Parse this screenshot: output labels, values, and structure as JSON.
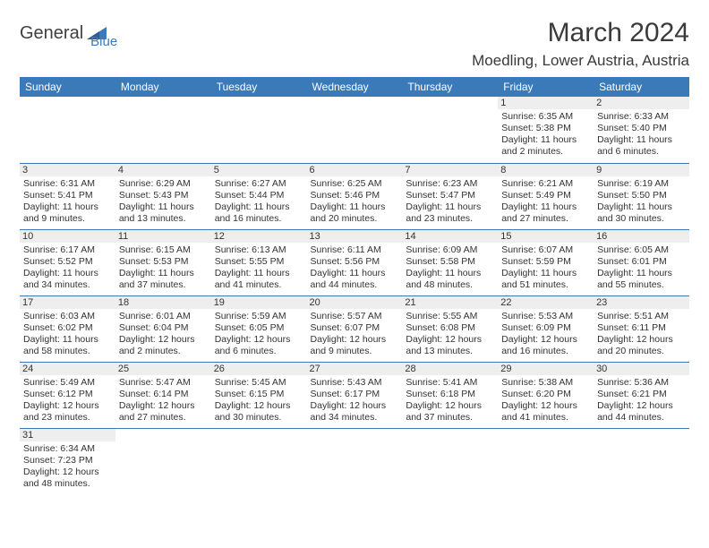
{
  "logo": {
    "part1": "General",
    "part2": "Blue"
  },
  "header": {
    "month": "March 2024",
    "location": "Moedling, Lower Austria, Austria"
  },
  "colors": {
    "header_bg": "#3b7ab8",
    "header_text": "#ffffff",
    "daynum_bg": "#eeeeee",
    "border": "#3b7ab8"
  },
  "weekdays": [
    "Sunday",
    "Monday",
    "Tuesday",
    "Wednesday",
    "Thursday",
    "Friday",
    "Saturday"
  ],
  "weeks": [
    [
      null,
      null,
      null,
      null,
      null,
      {
        "d": "1",
        "sr": "6:35 AM",
        "ss": "5:38 PM",
        "dl": "11 hours and 2 minutes."
      },
      {
        "d": "2",
        "sr": "6:33 AM",
        "ss": "5:40 PM",
        "dl": "11 hours and 6 minutes."
      }
    ],
    [
      {
        "d": "3",
        "sr": "6:31 AM",
        "ss": "5:41 PM",
        "dl": "11 hours and 9 minutes."
      },
      {
        "d": "4",
        "sr": "6:29 AM",
        "ss": "5:43 PM",
        "dl": "11 hours and 13 minutes."
      },
      {
        "d": "5",
        "sr": "6:27 AM",
        "ss": "5:44 PM",
        "dl": "11 hours and 16 minutes."
      },
      {
        "d": "6",
        "sr": "6:25 AM",
        "ss": "5:46 PM",
        "dl": "11 hours and 20 minutes."
      },
      {
        "d": "7",
        "sr": "6:23 AM",
        "ss": "5:47 PM",
        "dl": "11 hours and 23 minutes."
      },
      {
        "d": "8",
        "sr": "6:21 AM",
        "ss": "5:49 PM",
        "dl": "11 hours and 27 minutes."
      },
      {
        "d": "9",
        "sr": "6:19 AM",
        "ss": "5:50 PM",
        "dl": "11 hours and 30 minutes."
      }
    ],
    [
      {
        "d": "10",
        "sr": "6:17 AM",
        "ss": "5:52 PM",
        "dl": "11 hours and 34 minutes."
      },
      {
        "d": "11",
        "sr": "6:15 AM",
        "ss": "5:53 PM",
        "dl": "11 hours and 37 minutes."
      },
      {
        "d": "12",
        "sr": "6:13 AM",
        "ss": "5:55 PM",
        "dl": "11 hours and 41 minutes."
      },
      {
        "d": "13",
        "sr": "6:11 AM",
        "ss": "5:56 PM",
        "dl": "11 hours and 44 minutes."
      },
      {
        "d": "14",
        "sr": "6:09 AM",
        "ss": "5:58 PM",
        "dl": "11 hours and 48 minutes."
      },
      {
        "d": "15",
        "sr": "6:07 AM",
        "ss": "5:59 PM",
        "dl": "11 hours and 51 minutes."
      },
      {
        "d": "16",
        "sr": "6:05 AM",
        "ss": "6:01 PM",
        "dl": "11 hours and 55 minutes."
      }
    ],
    [
      {
        "d": "17",
        "sr": "6:03 AM",
        "ss": "6:02 PM",
        "dl": "11 hours and 58 minutes."
      },
      {
        "d": "18",
        "sr": "6:01 AM",
        "ss": "6:04 PM",
        "dl": "12 hours and 2 minutes."
      },
      {
        "d": "19",
        "sr": "5:59 AM",
        "ss": "6:05 PM",
        "dl": "12 hours and 6 minutes."
      },
      {
        "d": "20",
        "sr": "5:57 AM",
        "ss": "6:07 PM",
        "dl": "12 hours and 9 minutes."
      },
      {
        "d": "21",
        "sr": "5:55 AM",
        "ss": "6:08 PM",
        "dl": "12 hours and 13 minutes."
      },
      {
        "d": "22",
        "sr": "5:53 AM",
        "ss": "6:09 PM",
        "dl": "12 hours and 16 minutes."
      },
      {
        "d": "23",
        "sr": "5:51 AM",
        "ss": "6:11 PM",
        "dl": "12 hours and 20 minutes."
      }
    ],
    [
      {
        "d": "24",
        "sr": "5:49 AM",
        "ss": "6:12 PM",
        "dl": "12 hours and 23 minutes."
      },
      {
        "d": "25",
        "sr": "5:47 AM",
        "ss": "6:14 PM",
        "dl": "12 hours and 27 minutes."
      },
      {
        "d": "26",
        "sr": "5:45 AM",
        "ss": "6:15 PM",
        "dl": "12 hours and 30 minutes."
      },
      {
        "d": "27",
        "sr": "5:43 AM",
        "ss": "6:17 PM",
        "dl": "12 hours and 34 minutes."
      },
      {
        "d": "28",
        "sr": "5:41 AM",
        "ss": "6:18 PM",
        "dl": "12 hours and 37 minutes."
      },
      {
        "d": "29",
        "sr": "5:38 AM",
        "ss": "6:20 PM",
        "dl": "12 hours and 41 minutes."
      },
      {
        "d": "30",
        "sr": "5:36 AM",
        "ss": "6:21 PM",
        "dl": "12 hours and 44 minutes."
      }
    ],
    [
      {
        "d": "31",
        "sr": "6:34 AM",
        "ss": "7:23 PM",
        "dl": "12 hours and 48 minutes."
      },
      null,
      null,
      null,
      null,
      null,
      null
    ]
  ],
  "labels": {
    "sunrise": "Sunrise:",
    "sunset": "Sunset:",
    "daylight": "Daylight:"
  }
}
